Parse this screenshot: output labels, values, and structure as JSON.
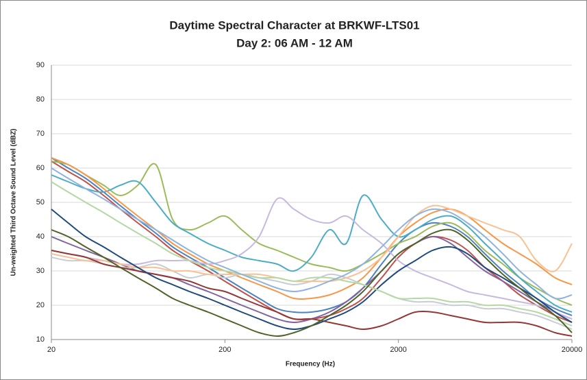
{
  "chart_data": {
    "type": "line",
    "title": "Daytime Spectral Character at BRKWF-LTS01",
    "subtitle": "Day 2: 06 AM - 12 AM",
    "x_label": "Frequency (Hz)",
    "y_label": "Un-weighted Third Octave Sound Level (dBZ)",
    "x": [
      20,
      25,
      31.5,
      40,
      50,
      63,
      80,
      100,
      125,
      160,
      200,
      250,
      315,
      400,
      500,
      630,
      800,
      1000,
      1250,
      1600,
      2000,
      2500,
      3150,
      4000,
      5000,
      6300,
      8000,
      10000,
      12500,
      16000,
      20000
    ],
    "xlim": [
      20,
      20000
    ],
    "xticks": [
      20,
      200,
      2000,
      20000
    ],
    "xlog": true,
    "ylim": [
      10,
      90
    ],
    "yticks": [
      10,
      20,
      30,
      40,
      50,
      60,
      70,
      80,
      90
    ],
    "grid": true,
    "series": [
      {
        "color": "#4f81bd",
        "values": [
          63,
          60,
          57,
          53,
          49,
          45,
          41,
          37,
          34,
          31,
          28,
          25,
          22,
          19,
          18,
          18,
          19,
          21,
          25,
          32,
          38,
          42,
          44,
          43,
          40,
          35,
          30,
          26,
          22,
          19,
          17
        ]
      },
      {
        "color": "#c0504d",
        "values": [
          62,
          59,
          56,
          52,
          48,
          44,
          40,
          36,
          33,
          30,
          27,
          24,
          21,
          18,
          16,
          16,
          17,
          19,
          22,
          28,
          34,
          38,
          40,
          39,
          36,
          31,
          27,
          23,
          20,
          17,
          15
        ]
      },
      {
        "color": "#9bbb59",
        "values": [
          62,
          61,
          58,
          55,
          52,
          55,
          61,
          45,
          42,
          44,
          46,
          42,
          38,
          36,
          34,
          32,
          31,
          30,
          32,
          35,
          38,
          40,
          43,
          44,
          41,
          36,
          32,
          28,
          25,
          22,
          20
        ]
      },
      {
        "color": "#8064a2",
        "values": [
          40,
          38,
          36,
          34,
          32,
          30,
          29,
          28,
          26,
          24,
          22,
          20,
          18,
          16,
          15,
          16,
          18,
          21,
          25,
          30,
          35,
          38,
          40,
          38,
          34,
          30,
          27,
          24,
          21,
          18,
          16
        ]
      },
      {
        "color": "#4bacc6",
        "values": [
          58,
          56,
          54,
          53,
          55,
          56,
          50,
          44,
          41,
          38,
          36,
          34,
          33,
          32,
          30,
          34,
          42,
          38,
          52,
          45,
          40,
          42,
          45,
          46,
          43,
          38,
          33,
          28,
          24,
          20,
          18
        ]
      },
      {
        "color": "#f79646",
        "values": [
          63,
          61,
          58,
          54,
          50,
          46,
          42,
          38,
          35,
          32,
          30,
          28,
          26,
          24,
          22,
          22,
          23,
          25,
          28,
          34,
          40,
          44,
          47,
          48,
          46,
          42,
          38,
          35,
          32,
          28,
          26
        ]
      },
      {
        "color": "#c8ccd4",
        "values": [
          34,
          33,
          33,
          32,
          31,
          31,
          32,
          30,
          28,
          29,
          28,
          29,
          28,
          27,
          26,
          27,
          29,
          28,
          26,
          24,
          22,
          21,
          21,
          20,
          20,
          19,
          19,
          18,
          17,
          15,
          13
        ]
      },
      {
        "color": "#c7b8e0",
        "values": [
          36,
          35,
          34,
          33,
          32,
          32,
          33,
          33,
          33,
          32,
          33,
          35,
          40,
          51,
          48,
          45,
          44,
          46,
          42,
          38,
          33,
          30,
          28,
          26,
          24,
          23,
          22,
          21,
          20,
          18,
          16
        ]
      },
      {
        "color": "#fac090",
        "values": [
          35,
          34,
          33,
          33,
          32,
          31,
          31,
          30,
          30,
          29,
          29,
          29,
          29,
          28,
          27,
          27,
          27,
          28,
          30,
          34,
          40,
          46,
          49,
          48,
          46,
          44,
          42,
          40,
          33,
          30,
          38
        ]
      },
      {
        "color": "#943634",
        "values": [
          36,
          35,
          34,
          32,
          31,
          30,
          29,
          28,
          27,
          25,
          24,
          22,
          20,
          18,
          16,
          16,
          15,
          14,
          13,
          14,
          16,
          18,
          18,
          17,
          16,
          15,
          15,
          15,
          14,
          12,
          11
        ]
      },
      {
        "color": "#1f497d",
        "values": [
          48,
          44,
          40,
          37,
          34,
          31,
          28,
          26,
          24,
          22,
          20,
          18,
          16,
          14,
          13,
          14,
          16,
          18,
          21,
          26,
          30,
          33,
          36,
          37,
          35,
          31,
          28,
          25,
          22,
          18,
          15
        ]
      },
      {
        "color": "#b3d9a3",
        "values": [
          56,
          53,
          50,
          47,
          44,
          41,
          38,
          35,
          33,
          31,
          30,
          29,
          28,
          28,
          27,
          28,
          28,
          27,
          26,
          24,
          22,
          22,
          22,
          21,
          21,
          20,
          20,
          19,
          18,
          16,
          14
        ]
      },
      {
        "color": "#4f6228",
        "values": [
          42,
          40,
          37,
          34,
          31,
          28,
          25,
          22,
          20,
          18,
          16,
          14,
          12,
          11,
          12,
          14,
          17,
          20,
          24,
          30,
          35,
          38,
          41,
          42,
          39,
          34,
          29,
          25,
          21,
          17,
          12
        ]
      },
      {
        "color": "#8db3e2",
        "values": [
          60,
          57,
          54,
          51,
          48,
          45,
          42,
          39,
          36,
          33,
          31,
          29,
          27,
          25,
          24,
          25,
          27,
          29,
          32,
          37,
          42,
          46,
          48,
          47,
          44,
          40,
          35,
          30,
          26,
          22,
          23
        ]
      }
    ]
  }
}
